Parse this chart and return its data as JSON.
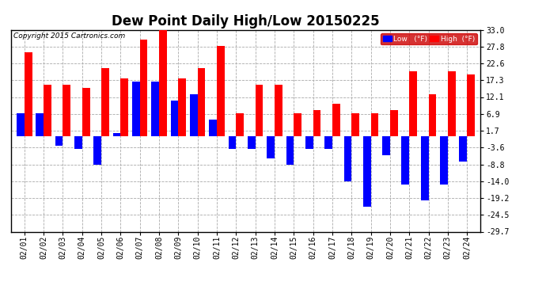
{
  "title": "Dew Point Daily High/Low 20150225",
  "copyright": "Copyright 2015 Cartronics.com",
  "dates": [
    "02/01",
    "02/02",
    "02/03",
    "02/04",
    "02/05",
    "02/06",
    "02/07",
    "02/08",
    "02/09",
    "02/10",
    "02/11",
    "02/12",
    "02/13",
    "02/14",
    "02/15",
    "02/16",
    "02/17",
    "02/18",
    "02/19",
    "02/20",
    "02/21",
    "02/22",
    "02/23",
    "02/24"
  ],
  "high": [
    26,
    16,
    16,
    15,
    21,
    18,
    30,
    33,
    18,
    21,
    28,
    7,
    16,
    16,
    7,
    8,
    10,
    7,
    7,
    8,
    20,
    13,
    20,
    19
  ],
  "low": [
    7,
    7,
    -3,
    -4,
    -9,
    1,
    17,
    17,
    11,
    13,
    5,
    -4,
    -4,
    -7,
    -9,
    -4,
    -4,
    -14,
    -22,
    -6,
    -15,
    -20,
    -15,
    -8
  ],
  "ylim": [
    -29.7,
    33.0
  ],
  "yticks": [
    33.0,
    27.8,
    22.6,
    17.3,
    12.1,
    6.9,
    1.7,
    -3.6,
    -8.8,
    -14.0,
    -19.2,
    -24.5,
    -29.7
  ],
  "high_color": "#ff0000",
  "low_color": "#0000ff",
  "bg_color": "#ffffff",
  "grid_color": "#aaaaaa",
  "bar_width": 0.4,
  "title_fontsize": 12,
  "tick_fontsize": 7,
  "legend_label_low": "Low   (°F)",
  "legend_label_high": "High  (°F)",
  "border_color": "#000000"
}
